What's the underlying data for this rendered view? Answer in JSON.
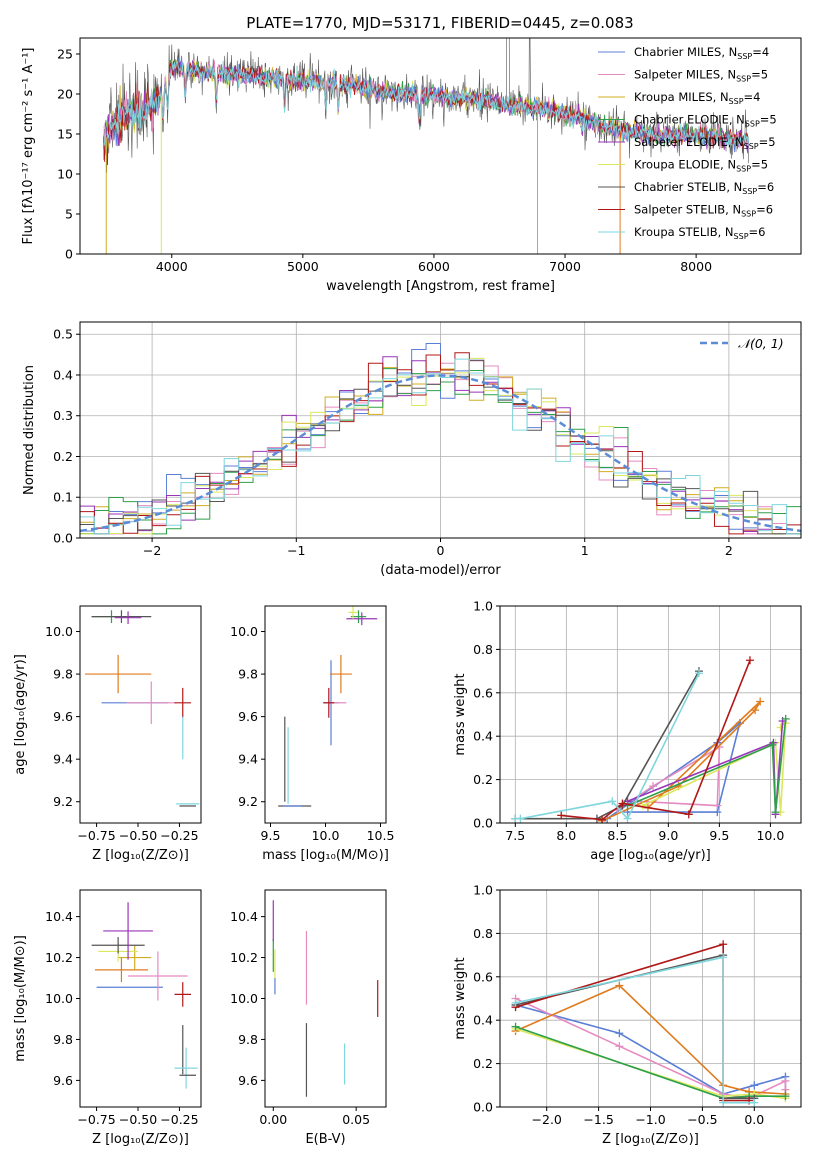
{
  "colors": {
    "chabrier_miles": "#5b7fd6",
    "salpeter_miles": "#e58bc2",
    "kroupa_miles": "#d1ad23",
    "chabrier_elodie": "#2ea04a",
    "salpeter_elodie": "#9a35b8",
    "kroupa_elodie": "#dbe85d",
    "chabrier_stelib": "#555555",
    "salpeter_stelib": "#b01818",
    "kroupa_stelib": "#7fd6dc",
    "orange": "#e07b1d",
    "gauss": "#5b8dd6"
  },
  "chart_data": [
    {
      "id": "spectrum",
      "type": "line",
      "title": "PLATE=1770, MJD=53171, FIBERID=0445, z=0.083",
      "xlabel": "wavelength [Angstrom, rest frame]",
      "ylabel": "Flux [fλ10⁻¹⁷ erg cm⁻² s⁻¹ A⁻¹]",
      "xlim": [
        3300,
        8800
      ],
      "ylim": [
        0,
        27
      ],
      "xticks": [
        4000,
        5000,
        6000,
        7000,
        8000
      ],
      "yticks": [
        0,
        5,
        10,
        15,
        20,
        25
      ],
      "legend_position": "upper right",
      "legend": [
        {
          "label": "Chabrier MILES, N",
          "sub": "SSP",
          "suffix": "=4",
          "color": "#5b7fd6"
        },
        {
          "label": "Salpeter MILES, N",
          "sub": "SSP",
          "suffix": "=5",
          "color": "#e58bc2"
        },
        {
          "label": "Kroupa MILES, N",
          "sub": "SSP",
          "suffix": "=4",
          "color": "#d1ad23"
        },
        {
          "label": "Chabrier ELODIE, N",
          "sub": "SSP",
          "suffix": "=5",
          "color": "#2ea04a"
        },
        {
          "label": "Salpeter ELODIE, N",
          "sub": "SSP",
          "suffix": "=5",
          "color": "#9a35b8"
        },
        {
          "label": "Kroupa ELODIE, N",
          "sub": "SSP",
          "suffix": "=5",
          "color": "#dbe85d"
        },
        {
          "label": "Chabrier STELIB, N",
          "sub": "SSP",
          "suffix": "=6",
          "color": "#555555"
        },
        {
          "label": "Salpeter STELIB, N",
          "sub": "SSP",
          "suffix": "=6",
          "color": "#b01818"
        },
        {
          "label": "Kroupa STELIB, N",
          "sub": "SSP",
          "suffix": "=6",
          "color": "#7fd6dc"
        }
      ],
      "continuum_x": [
        3480,
        3550,
        3650,
        3750,
        3850,
        3930,
        4000,
        4100,
        4200,
        4300,
        4400,
        4600,
        4800,
        5000,
        5200,
        5400,
        5600,
        5800,
        6000,
        6200,
        6400,
        6600,
        6800,
        7000,
        7200,
        7400,
        7600,
        7800,
        8000,
        8200,
        8400
      ],
      "continuum_y": [
        14.0,
        16.0,
        17.5,
        18.0,
        18.5,
        20.0,
        23.5,
        23.2,
        23.0,
        22.5,
        22.5,
        22.3,
        22.0,
        21.5,
        21.5,
        21.0,
        20.3,
        20.0,
        19.8,
        19.5,
        19.2,
        18.5,
        18.3,
        17.5,
        16.5,
        15.5,
        15.0,
        14.8,
        14.8,
        14.5,
        14.0
      ]
    },
    {
      "id": "residuals",
      "type": "step",
      "xlabel": "(data-model)/error",
      "ylabel": "Normed distribution",
      "xlim": [
        -2.5,
        2.5
      ],
      "ylim": [
        0,
        0.53
      ],
      "xticks": [
        -2,
        -1,
        0,
        1,
        2
      ],
      "yticks": [
        0.0,
        0.1,
        0.2,
        0.3,
        0.4,
        0.5
      ],
      "grid": true,
      "gaussian_label": "𝒩(0, 1)",
      "bins": 50
    },
    {
      "id": "age_vs_z",
      "type": "errorbar",
      "xlabel": "Z [log₁₀(Z/Z⊙)]",
      "ylabel": "age  [log₁₀(age/yr)]",
      "xlim": [
        -0.85,
        -0.12
      ],
      "ylim": [
        9.1,
        10.12
      ],
      "xticks": [
        -0.75,
        -0.5,
        -0.25
      ],
      "yticks": [
        9.2,
        9.4,
        9.6,
        9.8,
        10.0
      ],
      "points": [
        {
          "series": "chabrier_miles",
          "x": -0.52,
          "y": 9.665,
          "xerr": 0.2,
          "yerr": 0.0
        },
        {
          "series": "salpeter_miles",
          "x": -0.42,
          "y": 9.665,
          "xerr": 0.15,
          "yerr": 0.1
        },
        {
          "series": "orange",
          "x": -0.62,
          "y": 9.8,
          "xerr": 0.2,
          "yerr": 0.09
        },
        {
          "series": "chabrier_elodie",
          "x": -0.66,
          "y": 10.07,
          "xerr": 0.12,
          "yerr": 0.03
        },
        {
          "series": "chabrier_stelib",
          "x": -0.6,
          "y": 10.07,
          "xerr": 0.18,
          "yerr": 0.03
        },
        {
          "series": "salpeter_elodie",
          "x": -0.56,
          "y": 10.065,
          "xerr": 0.08,
          "yerr": 0.03
        },
        {
          "series": "salpeter_stelib",
          "x": -0.23,
          "y": 9.665,
          "xerr": 0.05,
          "yerr": 0.07
        },
        {
          "series": "kroupa_stelib",
          "x": -0.23,
          "y": 9.5,
          "xerr": 0.0,
          "yerr": 0.1
        },
        {
          "series": "kroupa_stelib",
          "x": -0.2,
          "y": 9.19,
          "xerr": 0.07,
          "yerr": 0.0
        },
        {
          "series": "chabrier_stelib",
          "x": -0.2,
          "y": 9.18,
          "xerr": 0.05,
          "yerr": 0.0
        }
      ]
    },
    {
      "id": "age_vs_mass",
      "type": "errorbar",
      "xlabel": "mass [log₁₀(M/M⊙)]",
      "ylabel": "",
      "xlim": [
        9.45,
        10.55
      ],
      "ylim": [
        9.1,
        10.12
      ],
      "xticks": [
        9.5,
        10.0,
        10.5
      ],
      "yticks": [
        9.2,
        9.4,
        9.6,
        9.8,
        10.0
      ],
      "points": [
        {
          "series": "chabrier_miles",
          "x": 10.05,
          "y": 9.665,
          "xerr": 0.07,
          "yerr": 0.2
        },
        {
          "series": "salpeter_miles",
          "x": 10.12,
          "y": 9.665,
          "xerr": 0.07,
          "yerr": 0.0
        },
        {
          "series": "orange",
          "x": 10.14,
          "y": 9.8,
          "xerr": 0.1,
          "yerr": 0.09
        },
        {
          "series": "chabrier_elodie",
          "x": 10.3,
          "y": 10.07,
          "xerr": 0.07,
          "yerr": 0.03
        },
        {
          "series": "salpeter_elodie",
          "x": 10.33,
          "y": 10.06,
          "xerr": 0.14,
          "yerr": 0.03
        },
        {
          "series": "kroupa_elodie",
          "x": 10.25,
          "y": 10.09,
          "xerr": 0.04,
          "yerr": 0.03
        },
        {
          "series": "salpeter_stelib",
          "x": 10.03,
          "y": 9.665,
          "xerr": 0.05,
          "yerr": 0.07
        },
        {
          "series": "chabrier_stelib",
          "x": 9.63,
          "y": 9.4,
          "xerr": 0.0,
          "yerr": 0.2
        },
        {
          "series": "kroupa_stelib",
          "x": 9.66,
          "y": 9.37,
          "xerr": 0.0,
          "yerr": 0.18
        },
        {
          "series": "chabrier_stelib",
          "x": 9.72,
          "y": 9.18,
          "xerr": 0.15,
          "yerr": 0.0
        },
        {
          "series": "chabrier_miles",
          "x": 9.7,
          "y": 9.18,
          "xerr": 0.08,
          "yerr": 0.0
        }
      ]
    },
    {
      "id": "weight_vs_age",
      "type": "line",
      "xlabel": "age  [log₁₀(age/yr)]",
      "ylabel": "mass weight",
      "xlim": [
        7.35,
        10.3
      ],
      "ylim": [
        0,
        1.0
      ],
      "xticks": [
        7.5,
        8.0,
        8.5,
        9.0,
        9.5,
        10.0
      ],
      "yticks": [
        0.0,
        0.2,
        0.4,
        0.6,
        0.8,
        1.0
      ],
      "grid": true,
      "series": [
        {
          "series": "chabrier_miles",
          "x": [
            8.6,
            9.48,
            9.7,
            9.48,
            8.4
          ],
          "y": [
            0.05,
            0.05,
            0.46,
            0.37,
            0.02
          ]
        },
        {
          "series": "salpeter_miles",
          "x": [
            8.7,
            9.48,
            9.5,
            8.85,
            8.5
          ],
          "y": [
            0.1,
            0.08,
            0.35,
            0.17,
            0.06
          ]
        },
        {
          "series": "orange",
          "x": [
            8.35,
            9.1,
            9.85,
            9.9,
            8.8
          ],
          "y": [
            0.01,
            0.17,
            0.52,
            0.56,
            0.07
          ]
        },
        {
          "series": "kroupa_elodie",
          "x": [
            8.75,
            10.05,
            10.1,
            10.15,
            10.1
          ],
          "y": [
            0.08,
            0.37,
            0.05,
            0.46,
            0.44
          ]
        },
        {
          "series": "salpeter_elodie",
          "x": [
            8.6,
            10.03,
            10.05,
            10.12
          ],
          "y": [
            0.1,
            0.37,
            0.04,
            0.47
          ]
        },
        {
          "series": "chabrier_elodie",
          "x": [
            8.6,
            10.02,
            10.05,
            10.15
          ],
          "y": [
            0.08,
            0.36,
            0.05,
            0.48
          ]
        },
        {
          "series": "chabrier_stelib",
          "x": [
            7.5,
            8.3,
            8.55,
            9.3
          ],
          "y": [
            0.02,
            0.02,
            0.08,
            0.7
          ]
        },
        {
          "series": "salpeter_stelib",
          "x": [
            7.95,
            8.35,
            8.55,
            9.2,
            9.8
          ],
          "y": [
            0.035,
            0.015,
            0.09,
            0.04,
            0.75
          ]
        },
        {
          "series": "kroupa_stelib",
          "x": [
            7.5,
            7.55,
            8.45,
            8.6,
            9.3
          ],
          "y": [
            0.02,
            0.02,
            0.1,
            0.02,
            0.69
          ]
        }
      ]
    },
    {
      "id": "mass_vs_z",
      "type": "errorbar",
      "xlabel": "Z [log₁₀(Z/Z⊙)]",
      "ylabel": "mass [log₁₀(M/M⊙)]",
      "xlim": [
        -0.85,
        -0.12
      ],
      "ylim": [
        9.47,
        10.53
      ],
      "xticks": [
        -0.75,
        -0.5,
        -0.25
      ],
      "yticks": [
        9.6,
        9.8,
        10.0,
        10.2,
        10.4
      ],
      "points": [
        {
          "series": "chabrier_miles",
          "x": -0.55,
          "y": 10.055,
          "xerr": 0.2,
          "yerr": 0.0
        },
        {
          "series": "salpeter_miles",
          "x": -0.38,
          "y": 10.11,
          "xerr": 0.18,
          "yerr": 0.12
        },
        {
          "series": "orange",
          "x": -0.6,
          "y": 10.14,
          "xerr": 0.16,
          "yerr": 0.06
        },
        {
          "series": "kroupa_miles",
          "x": -0.52,
          "y": 10.2,
          "xerr": 0.1,
          "yerr": 0.06
        },
        {
          "series": "kroupa_elodie",
          "x": -0.62,
          "y": 10.23,
          "xerr": 0.12,
          "yerr": 0.05
        },
        {
          "series": "chabrier_stelib",
          "x": -0.62,
          "y": 10.26,
          "xerr": 0.16,
          "yerr": 0.04
        },
        {
          "series": "salpeter_elodie",
          "x": -0.56,
          "y": 10.33,
          "xerr": 0.15,
          "yerr": 0.14
        },
        {
          "series": "salpeter_stelib",
          "x": -0.23,
          "y": 10.02,
          "xerr": 0.05,
          "yerr": 0.06
        },
        {
          "series": "chabrier_stelib",
          "x": -0.23,
          "y": 9.75,
          "xerr": 0.0,
          "yerr": 0.12
        },
        {
          "series": "kroupa_stelib",
          "x": -0.21,
          "y": 9.66,
          "xerr": 0.07,
          "yerr": 0.1
        },
        {
          "series": "chabrier_stelib",
          "x": -0.2,
          "y": 9.625,
          "xerr": 0.05,
          "yerr": 0.0
        }
      ]
    },
    {
      "id": "mass_vs_ebv",
      "type": "errorbar",
      "xlabel": "E(B-V)",
      "ylabel": "",
      "xlim": [
        -0.005,
        0.068
      ],
      "ylim": [
        9.47,
        10.53
      ],
      "xticks": [
        0.0,
        0.05
      ],
      "yticks": [
        9.6,
        9.8,
        10.0,
        10.2,
        10.4
      ],
      "points": [
        {
          "series": "chabrier_elodie",
          "x": 0.0,
          "y": 10.21,
          "xerr": 0.0,
          "yerr": 0.08
        },
        {
          "series": "salpeter_elodie",
          "x": 0.0,
          "y": 10.38,
          "xerr": 0.0,
          "yerr": 0.1
        },
        {
          "series": "kroupa_elodie",
          "x": 0.001,
          "y": 10.17,
          "xerr": 0.0,
          "yerr": 0.07
        },
        {
          "series": "chabrier_miles",
          "x": 0.001,
          "y": 10.06,
          "xerr": 0.0,
          "yerr": 0.04
        },
        {
          "series": "salpeter_miles",
          "x": 0.02,
          "y": 10.15,
          "xerr": 0.0,
          "yerr": 0.18
        },
        {
          "series": "chabrier_stelib",
          "x": 0.02,
          "y": 9.7,
          "xerr": 0.0,
          "yerr": 0.18
        },
        {
          "series": "kroupa_stelib",
          "x": 0.043,
          "y": 9.68,
          "xerr": 0.0,
          "yerr": 0.1
        },
        {
          "series": "salpeter_stelib",
          "x": 0.063,
          "y": 10.0,
          "xerr": 0.0,
          "yerr": 0.09
        }
      ]
    },
    {
      "id": "weight_vs_z",
      "type": "line",
      "xlabel": "Z [log₁₀(Z/Z⊙)]",
      "ylabel": "mass weight",
      "xlim": [
        -2.45,
        0.45
      ],
      "ylim": [
        0,
        1.0
      ],
      "xticks": [
        -2.0,
        -1.5,
        -1.0,
        -0.5,
        0.0
      ],
      "yticks": [
        0.0,
        0.2,
        0.4,
        0.6,
        0.8,
        1.0
      ],
      "grid": true,
      "series": [
        {
          "series": "chabrier_miles",
          "x": [
            -2.3,
            -1.3,
            -0.3,
            0.0,
            0.3,
            0.3
          ],
          "y": [
            0.47,
            0.34,
            0.06,
            0.1,
            0.14,
            0.05
          ]
        },
        {
          "series": "salpeter_miles",
          "x": [
            -2.3,
            -1.3,
            -0.3,
            -0.05,
            0.3,
            0.3
          ],
          "y": [
            0.5,
            0.28,
            0.06,
            0.04,
            0.12,
            0.08
          ]
        },
        {
          "series": "orange",
          "x": [
            -2.3,
            -1.3,
            -0.3,
            -0.05,
            0.3
          ],
          "y": [
            0.35,
            0.56,
            0.1,
            0.07,
            0.06
          ]
        },
        {
          "series": "kroupa_elodie",
          "x": [
            -2.3,
            -0.3,
            0.0,
            0.3,
            0.3
          ],
          "y": [
            0.36,
            0.05,
            0.06,
            0.04,
            0.05
          ]
        },
        {
          "series": "chabrier_elodie",
          "x": [
            -2.3,
            -0.3,
            -0.05,
            0.3
          ],
          "y": [
            0.37,
            0.04,
            0.05,
            0.05
          ]
        },
        {
          "series": "chabrier_stelib",
          "x": [
            -2.3,
            -0.3,
            -0.3,
            0.0
          ],
          "y": [
            0.47,
            0.7,
            0.04,
            0.04
          ]
        },
        {
          "series": "salpeter_stelib",
          "x": [
            -2.3,
            -0.3,
            -0.3,
            -0.05
          ],
          "y": [
            0.46,
            0.75,
            0.03,
            0.03
          ]
        },
        {
          "series": "kroupa_stelib",
          "x": [
            -2.3,
            -0.3,
            -0.3,
            0.0
          ],
          "y": [
            0.48,
            0.69,
            0.02,
            0.02
          ]
        }
      ]
    }
  ]
}
